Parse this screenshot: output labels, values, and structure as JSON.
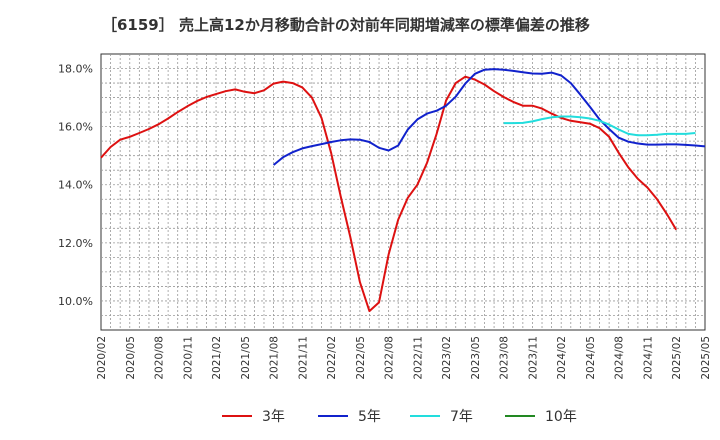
{
  "chart_title": "［6159］ 売上高12か月移動合計の対前年同期増減率の標準偏差の推移",
  "chart_data": {
    "type": "line",
    "title": "［6159］ 売上高12か月移動合計の対前年同期増減率の標準偏差の推移",
    "xlabel": "",
    "ylabel": "",
    "ylim": [
      9.0,
      18.5
    ],
    "yticks": [
      "10.0%",
      "12.0%",
      "14.0%",
      "16.0%",
      "18.0%"
    ],
    "ytick_values": [
      10,
      12,
      14,
      16,
      18
    ],
    "xticks": [
      "2020/02",
      "2020/05",
      "2020/08",
      "2020/11",
      "2021/02",
      "2021/05",
      "2021/08",
      "2021/11",
      "2022/02",
      "2022/05",
      "2022/08",
      "2022/11",
      "2023/02",
      "2023/05",
      "2023/08",
      "2023/11",
      "2024/02",
      "2024/05",
      "2024/08",
      "2024/11",
      "2025/02",
      "2025/05"
    ],
    "x_start": "2020/02",
    "x_months": 63,
    "grid": true,
    "legend_position": "bottom",
    "series": [
      {
        "name": "3年",
        "color": "#dd1111",
        "start": "2020/02",
        "values": [
          14.93,
          15.3,
          15.55,
          15.65,
          15.78,
          15.92,
          16.08,
          16.28,
          16.5,
          16.7,
          16.88,
          17.02,
          17.12,
          17.22,
          17.28,
          17.2,
          17.15,
          17.25,
          17.48,
          17.55,
          17.5,
          17.35,
          17.0,
          16.3,
          15.1,
          13.6,
          12.2,
          10.65,
          9.65,
          9.95,
          11.6,
          12.8,
          13.55,
          14.0,
          14.75,
          15.75,
          16.9,
          17.5,
          17.72,
          17.62,
          17.45,
          17.22,
          17.02,
          16.85,
          16.72,
          16.72,
          16.62,
          16.45,
          16.3,
          16.2,
          16.15,
          16.1,
          15.95,
          15.65,
          15.1,
          14.6,
          14.2,
          13.9,
          13.5,
          13.0,
          12.45
        ]
      },
      {
        "name": "5年",
        "color": "#1122cc",
        "start": "2021/08",
        "values": [
          14.68,
          14.95,
          15.12,
          15.25,
          15.33,
          15.4,
          15.47,
          15.53,
          15.56,
          15.55,
          15.47,
          15.27,
          15.18,
          15.35,
          15.9,
          16.25,
          16.45,
          16.55,
          16.72,
          17.03,
          17.48,
          17.82,
          17.96,
          17.98,
          17.96,
          17.92,
          17.87,
          17.83,
          17.82,
          17.86,
          17.76,
          17.5,
          17.1,
          16.68,
          16.25,
          15.92,
          15.62,
          15.48,
          15.42,
          15.38,
          15.38,
          15.39,
          15.39,
          15.37,
          15.35,
          15.32
        ]
      },
      {
        "name": "7年",
        "color": "#22dddd",
        "start": "2023/08",
        "values": [
          16.12,
          16.12,
          16.13,
          16.18,
          16.26,
          16.32,
          16.35,
          16.35,
          16.32,
          16.28,
          16.2,
          16.07,
          15.9,
          15.75,
          15.7,
          15.7,
          15.72,
          15.75,
          15.75,
          15.75,
          15.78
        ]
      },
      {
        "name": "10年",
        "color": "#228822",
        "start": "2023/08",
        "values": []
      }
    ]
  }
}
